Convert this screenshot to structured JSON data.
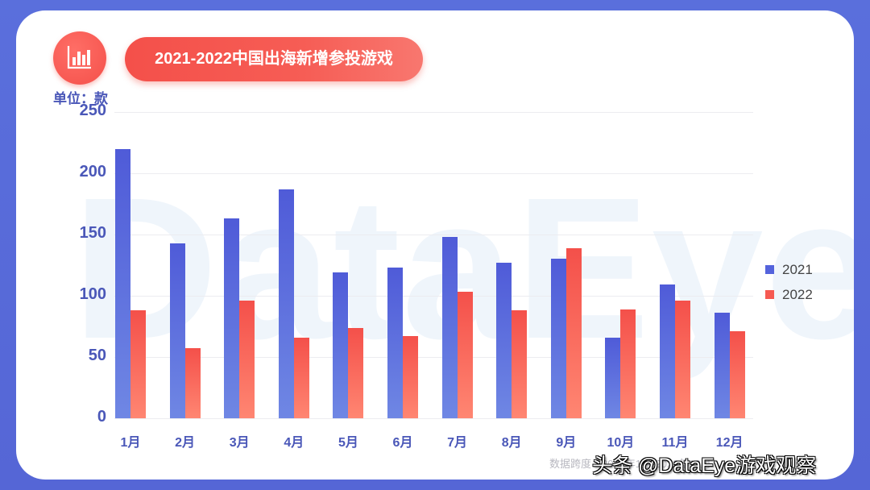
{
  "header": {
    "icon": "bar-chart-icon",
    "title": "2021-2022中国出海新增参投游戏",
    "unit_label": "单位：款"
  },
  "watermark_bg": "DataEye",
  "legend": [
    {
      "label": "2021",
      "color": "#5463dc"
    },
    {
      "label": "2022",
      "color": "#f65a52"
    }
  ],
  "footnote": "数据跨度：2021年1月-2022年12月",
  "source_watermark": "头条 @DataEye游戏观察",
  "colors": {
    "frame": "#5a6fdc",
    "series_2021": "#5463dc",
    "series_2022": "#f65a52",
    "axis_text": "#4a57b8",
    "title_pill": "#f4504a"
  },
  "chart_data": {
    "type": "bar",
    "title": "2021-2022中国出海新增参投游戏",
    "xlabel": "",
    "ylabel": "单位：款",
    "ylim": [
      0,
      250
    ],
    "yticks": [
      0,
      50,
      100,
      150,
      200,
      250
    ],
    "grid": true,
    "legend_position": "right",
    "categories": [
      "1月",
      "2月",
      "3月",
      "4月",
      "5月",
      "6月",
      "7月",
      "8月",
      "9月",
      "10月",
      "11月",
      "12月"
    ],
    "series": [
      {
        "name": "2021",
        "values": [
          220,
          143,
          163,
          187,
          119,
          123,
          148,
          127,
          130,
          66,
          109,
          86
        ]
      },
      {
        "name": "2022",
        "values": [
          88,
          57,
          96,
          66,
          74,
          67,
          103,
          88,
          139,
          89,
          96,
          71
        ]
      }
    ]
  }
}
